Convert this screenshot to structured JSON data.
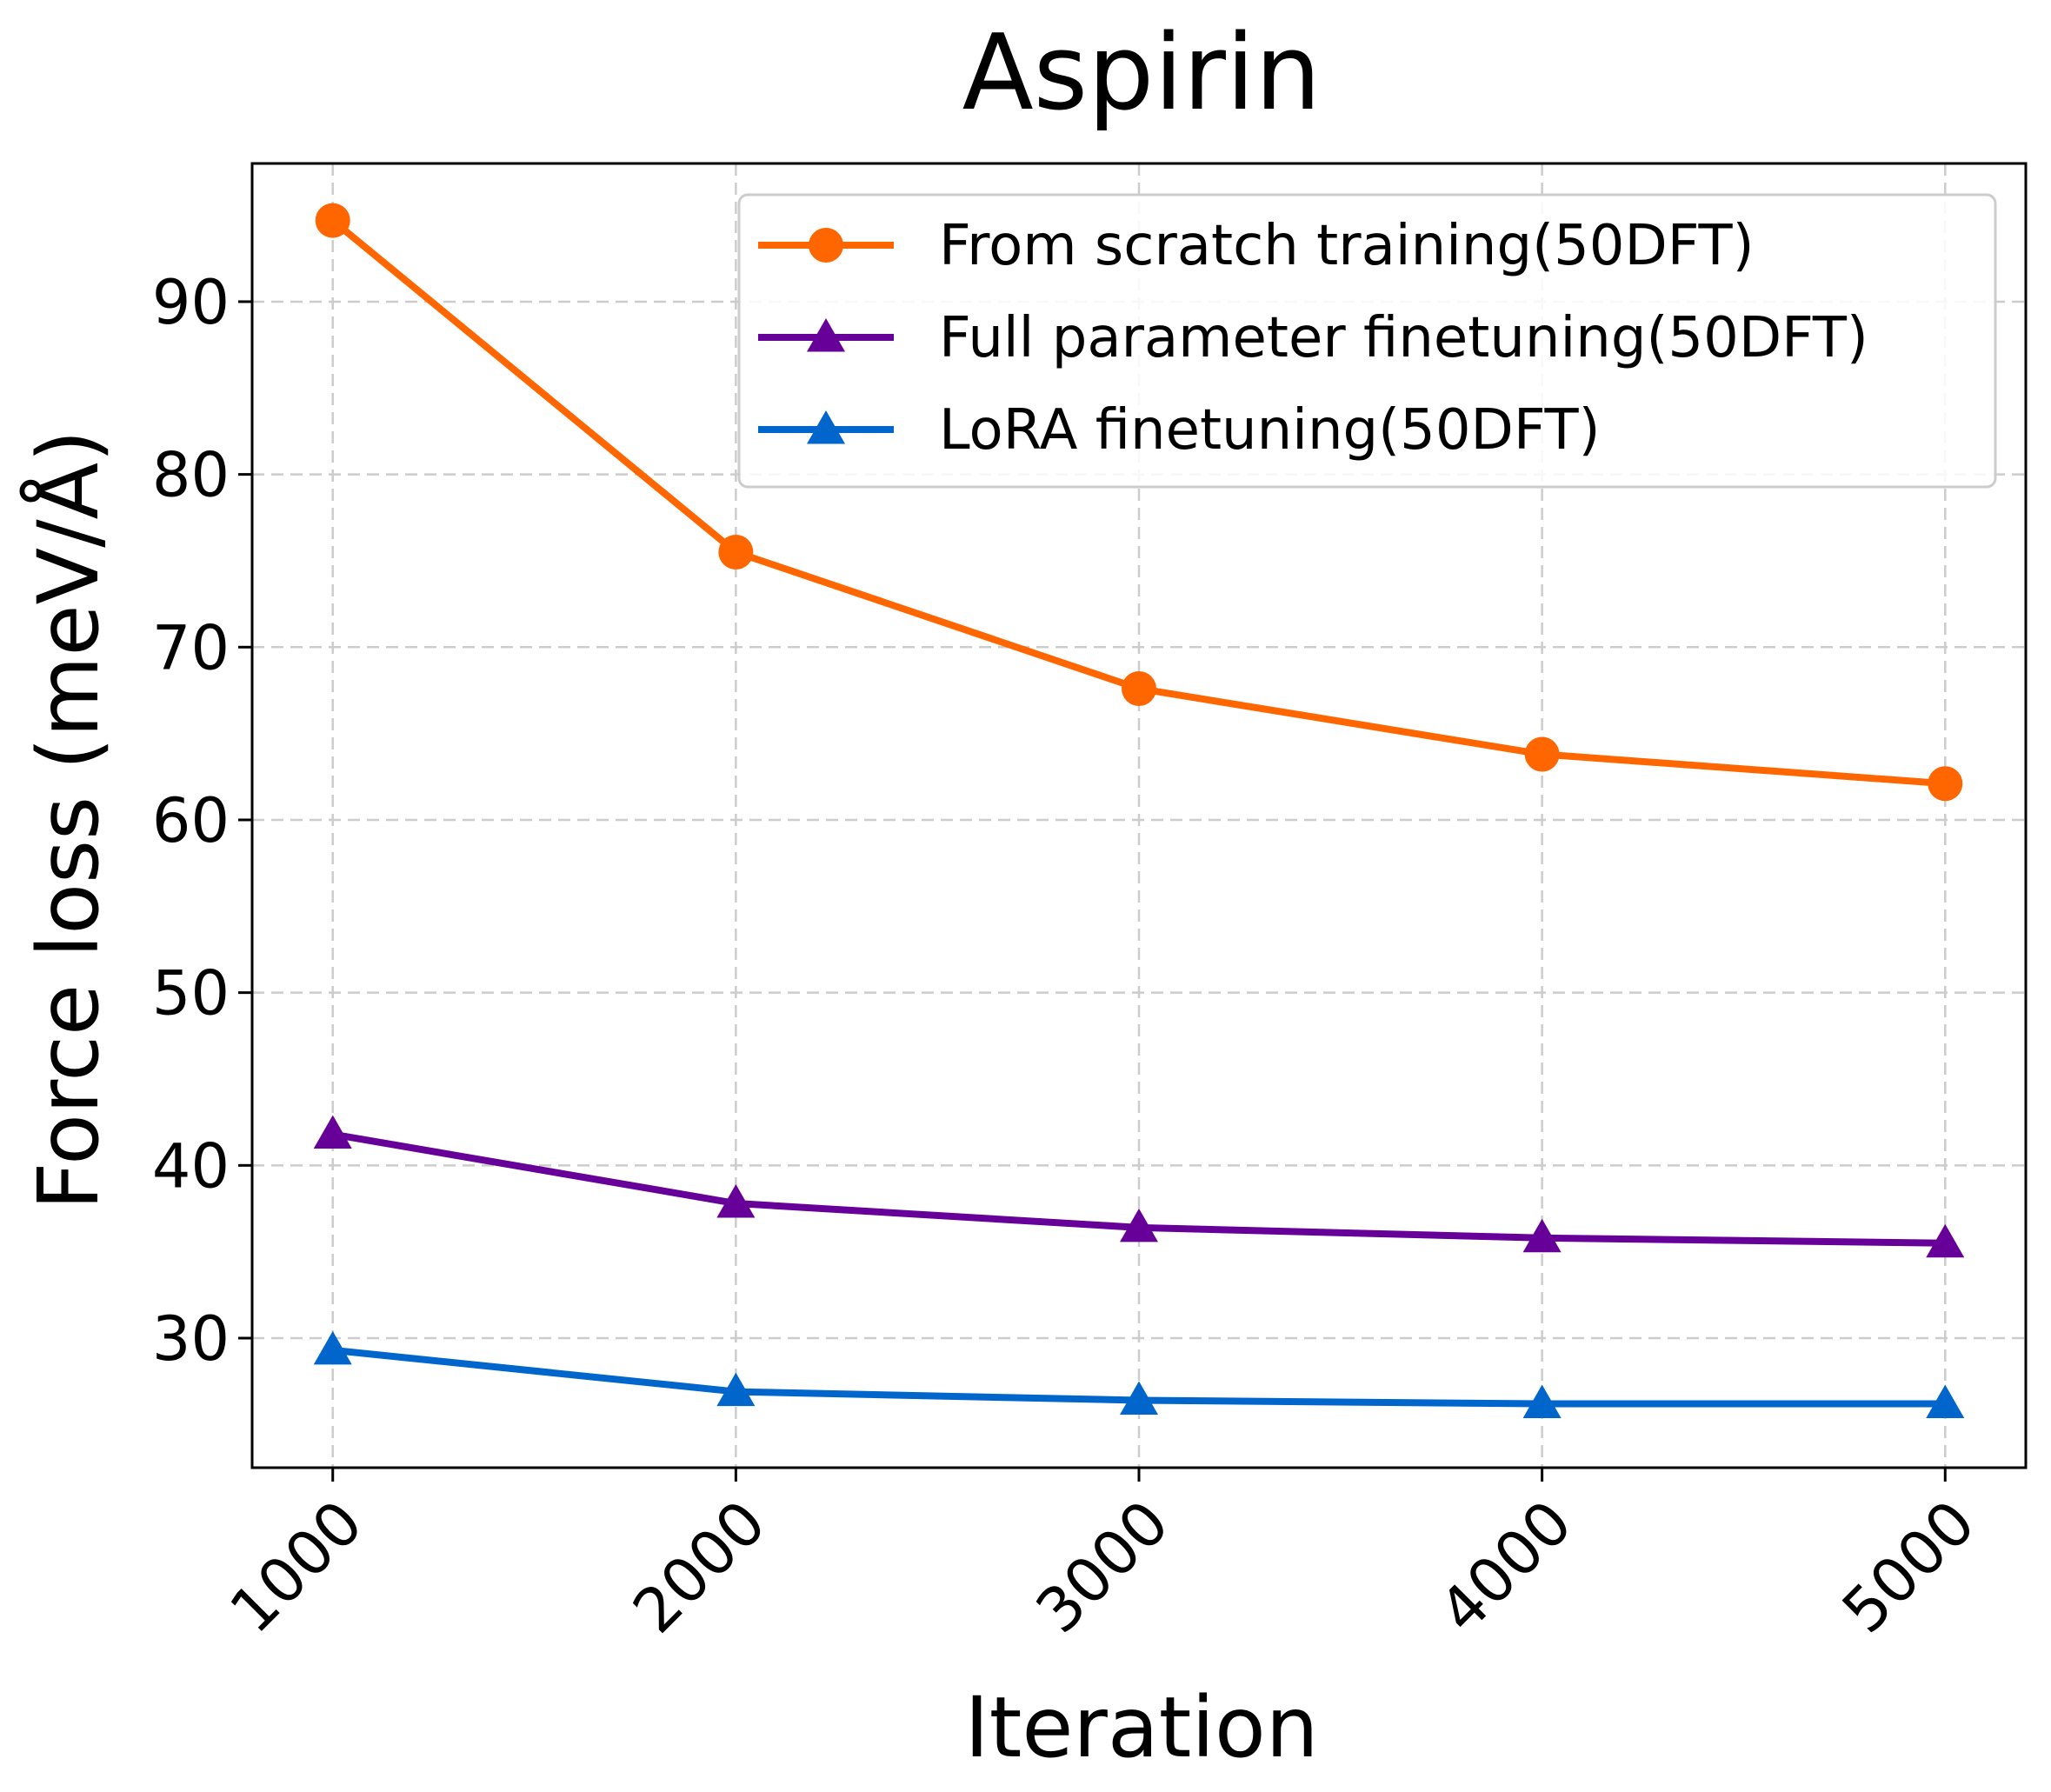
{
  "chart_data": {
    "type": "line",
    "title": "Aspirin",
    "xlabel": "Iteration",
    "ylabel": "Force loss (meV/Å)",
    "x": [
      1000,
      2000,
      3000,
      4000,
      5000
    ],
    "xticks": [
      1000,
      2000,
      3000,
      4000,
      5000
    ],
    "yticks": [
      30,
      40,
      50,
      60,
      70,
      80,
      90
    ],
    "xlim": [
      800,
      5200
    ],
    "ylim": [
      22.5,
      98.0
    ],
    "grid": true,
    "legend_position": "top-right",
    "series": [
      {
        "name": "From scratch training(50DFT)",
        "values": [
          94.7,
          75.5,
          67.6,
          63.8,
          62.1
        ],
        "color": "#ff6600",
        "marker": "circle"
      },
      {
        "name": "Full parameter finetuning(50DFT)",
        "values": [
          41.8,
          37.8,
          36.4,
          35.8,
          35.5
        ],
        "color": "#660099",
        "marker": "triangle"
      },
      {
        "name": "LoRA finetuning(50DFT)",
        "values": [
          29.3,
          26.9,
          26.4,
          26.2,
          26.2
        ],
        "color": "#0066cc",
        "marker": "triangle"
      }
    ]
  }
}
